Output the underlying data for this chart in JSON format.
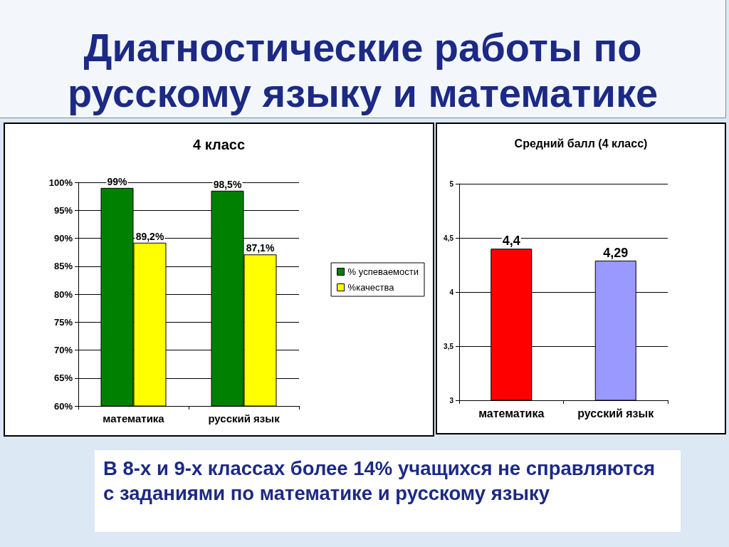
{
  "chart_data": [
    {
      "type": "other",
      "title": "Диагностические работы по русскому языку и математике"
    },
    {
      "type": "bar",
      "title": "4 класс",
      "categories": [
        "математика",
        "русский язык"
      ],
      "series": [
        {
          "name": "% успеваемости",
          "color": "#008000",
          "values": [
            99,
            98.5
          ],
          "value_labels": [
            "99%",
            "98,5%"
          ]
        },
        {
          "name": "%качества",
          "color": "#ffff00",
          "values": [
            89.2,
            87.1
          ],
          "value_labels": [
            "89,2%",
            "87,1%"
          ]
        }
      ],
      "ylim": [
        60,
        100
      ],
      "yticks": [
        {
          "value": 60,
          "label": "60%"
        },
        {
          "value": 65,
          "label": "65%"
        },
        {
          "value": 70,
          "label": "70%"
        },
        {
          "value": 75,
          "label": "75%"
        },
        {
          "value": 80,
          "label": "80%"
        },
        {
          "value": 85,
          "label": "85%"
        },
        {
          "value": 90,
          "label": "90%"
        },
        {
          "value": 95,
          "label": "95%"
        },
        {
          "value": 100,
          "label": "100%"
        }
      ],
      "grid": "y",
      "legend": "right"
    },
    {
      "type": "bar",
      "title": "Средний балл (4 класс)",
      "categories": [
        "математика",
        "русский язык"
      ],
      "values": [
        4.4,
        4.29
      ],
      "colors": [
        "#ff0000",
        "#9999ff"
      ],
      "value_labels": [
        "4,4",
        "4,29"
      ],
      "ylim": [
        3,
        5
      ],
      "yticks": [
        3,
        {
          "value": 3.5,
          "label": "3,5"
        },
        4,
        {
          "value": 4.5,
          "label": "4,5"
        },
        5
      ],
      "grid": "y"
    },
    {
      "type": "other",
      "annotations": [
        "В 8-х и 9-х классах более 14% учащихся не справляются с заданиями по математике и русскому языку"
      ]
    }
  ]
}
